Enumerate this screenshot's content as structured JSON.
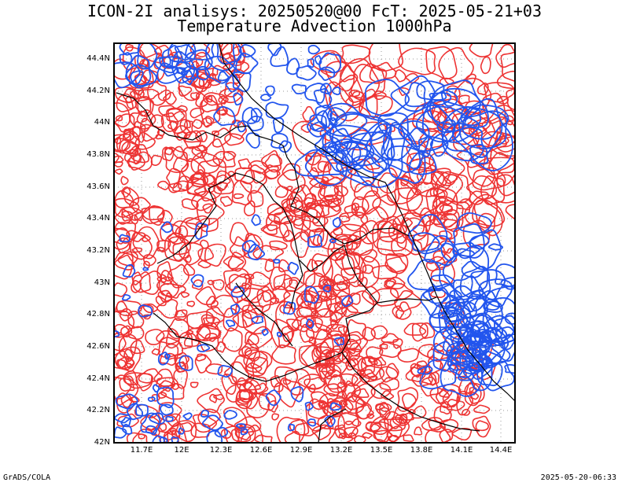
{
  "title": {
    "line1": "ICON-2I analisys: 20250520@00 FcT: 2025-05-21+03",
    "line2": "Temperature Advection 1000hPa"
  },
  "axes": {
    "lat_labels": [
      "44.4N",
      "44.2N",
      "44N",
      "43.8N",
      "43.6N",
      "43.4N",
      "43.2N",
      "43N",
      "42.8N",
      "42.6N",
      "42.4N",
      "42.2N",
      "42N"
    ],
    "lon_labels": [
      "11.7E",
      "12E",
      "12.3E",
      "12.6E",
      "12.9E",
      "13.2E",
      "13.5E",
      "13.8E",
      "14.1E",
      "14.4E"
    ]
  },
  "footer": {
    "left": "GrADS/COLA",
    "right": "2025-05-20-06:33"
  },
  "colors": {
    "warm_advection": "#ee3333",
    "cold_advection": "#2255ee",
    "border": "#000000",
    "grid": "#999999"
  }
}
